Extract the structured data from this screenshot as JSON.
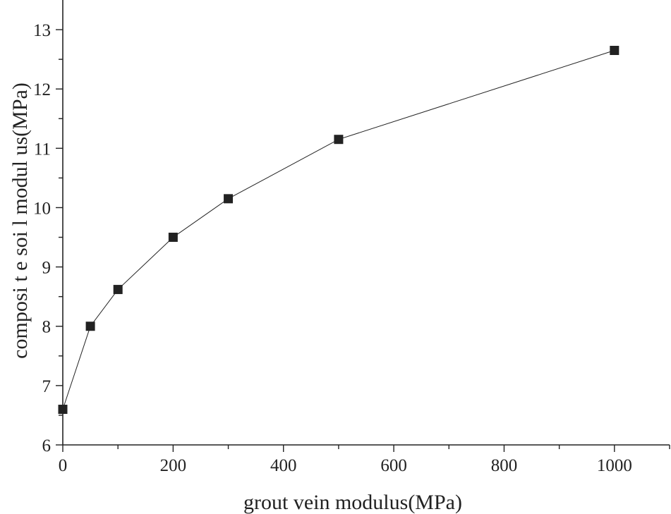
{
  "chart_data": {
    "type": "line",
    "title": "",
    "xlabel": "grout vein modulus(MPa)",
    "ylabel": "composi t e soi l modul us(MPa)",
    "xlim": [
      0,
      1100
    ],
    "ylim": [
      6,
      13.5
    ],
    "x_ticks": [
      0,
      200,
      400,
      600,
      800,
      1000
    ],
    "x_minor_ticks": [
      100,
      300,
      500,
      700,
      900,
      1100
    ],
    "y_ticks": [
      6,
      7,
      8,
      9,
      10,
      11,
      12,
      13
    ],
    "y_minor_ticks": [
      6.5,
      7.5,
      8.5,
      9.5,
      10.5,
      11.5,
      12.5
    ],
    "grid": false,
    "series": [
      {
        "name": "composite soil modulus",
        "marker": "square",
        "color": "#222222",
        "x": [
          0,
          50,
          100,
          200,
          300,
          500,
          1000
        ],
        "y": [
          6.6,
          8.0,
          8.62,
          9.5,
          10.15,
          11.15,
          12.65
        ]
      }
    ]
  }
}
